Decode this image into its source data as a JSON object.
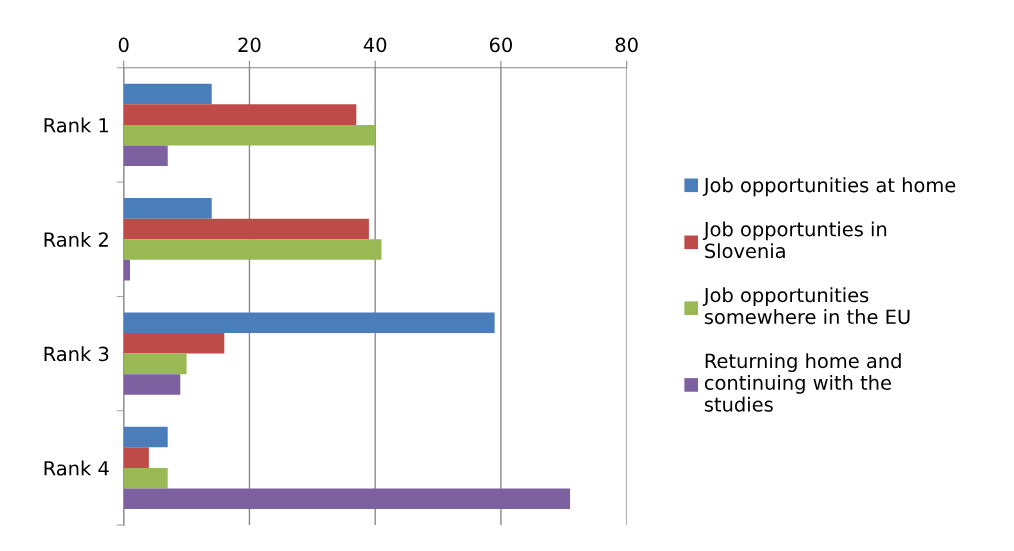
{
  "chart_data": {
    "type": "bar",
    "orientation": "horizontal",
    "categories": [
      "Rank 1",
      "Rank 2",
      "Rank 3",
      "Rank 4"
    ],
    "series": [
      {
        "name": "Job opportunities at home",
        "color": "#4a7ebb",
        "values": [
          14,
          14,
          59,
          7
        ]
      },
      {
        "name": "Job opportunties in Slovenia",
        "color": "#be4b48",
        "values": [
          37,
          39,
          16,
          4
        ]
      },
      {
        "name": "Job opportunities somewhere in the EU",
        "color": "#98b954",
        "values": [
          40,
          41,
          10,
          7
        ]
      },
      {
        "name": "Returning home and continuing with the studies",
        "color": "#7d60a0",
        "values": [
          7,
          1,
          9,
          71
        ]
      }
    ],
    "xlim": [
      0,
      80
    ],
    "xticks": [
      0,
      20,
      40,
      60,
      80
    ],
    "grid": "x",
    "legend": "right"
  }
}
